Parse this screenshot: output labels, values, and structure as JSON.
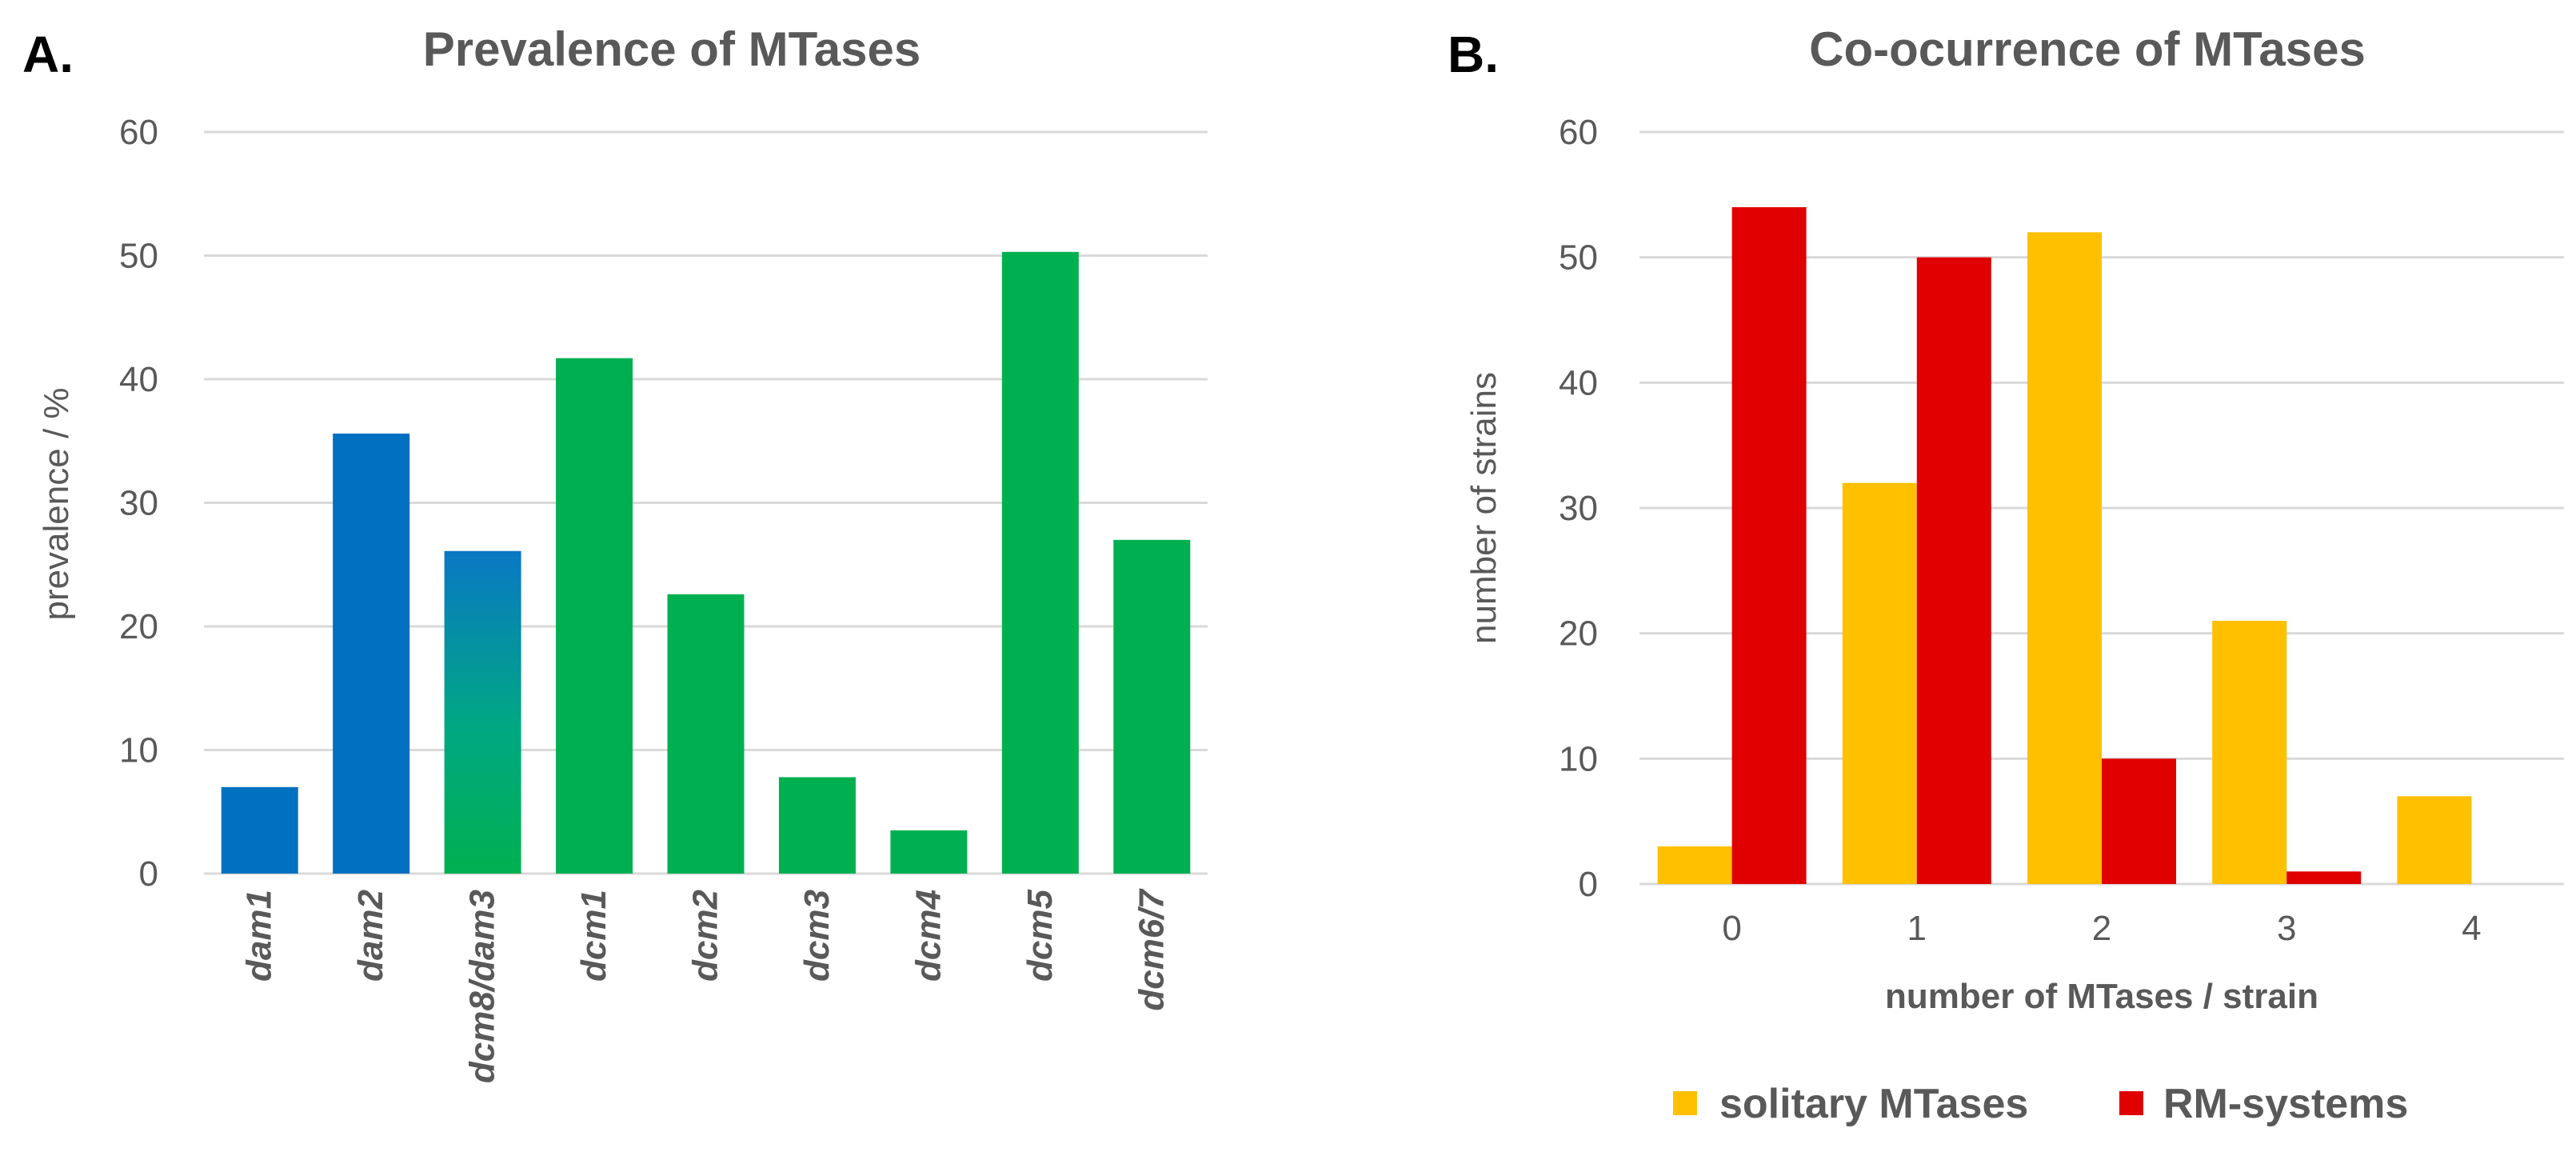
{
  "colors": {
    "dam_blue": "#0070c0",
    "dcm_green": "#00b050",
    "solitary_yellow": "#ffc000",
    "rm_red": "#e00000",
    "text_gray": "#595959",
    "grid_gray": "#d9d9d9"
  },
  "chart_data": [
    {
      "panel": "A.",
      "type": "bar",
      "title": "Prevalence  of MTases",
      "xlabel": "",
      "ylabel": "prevalence / %",
      "ylim": [
        0,
        60
      ],
      "yticks": [
        0,
        10,
        20,
        30,
        40,
        50,
        60
      ],
      "grid": true,
      "categories": [
        "dam1",
        "dam2",
        "dcm8/dam3",
        "dcm1",
        "dcm2",
        "dcm3",
        "dcm4",
        "dcm5",
        "dcm6/7"
      ],
      "values": [
        7,
        35.6,
        26.1,
        41.7,
        22.6,
        7.8,
        3.5,
        50.3,
        27
      ],
      "bar_colors": [
        "dam_blue",
        "dam_blue",
        "gradient",
        "dcm_green",
        "dcm_green",
        "dcm_green",
        "dcm_green",
        "dcm_green",
        "dcm_green"
      ]
    },
    {
      "panel": "B.",
      "type": "bar",
      "title": "Co-ocurrence of MTases",
      "xlabel": "number of MTases / strain",
      "ylabel": "number of strains",
      "ylim": [
        0,
        60
      ],
      "yticks": [
        0,
        10,
        20,
        30,
        40,
        50,
        60
      ],
      "grid": true,
      "categories": [
        "0",
        "1",
        "2",
        "3",
        "4"
      ],
      "series": [
        {
          "name": "solitary MTases",
          "color": "solitary_yellow",
          "values": [
            3,
            32,
            52,
            21,
            7
          ]
        },
        {
          "name": "RM-systems",
          "color": "rm_red",
          "values": [
            54,
            50,
            10,
            1,
            0
          ]
        }
      ],
      "legend": "bottom"
    }
  ]
}
